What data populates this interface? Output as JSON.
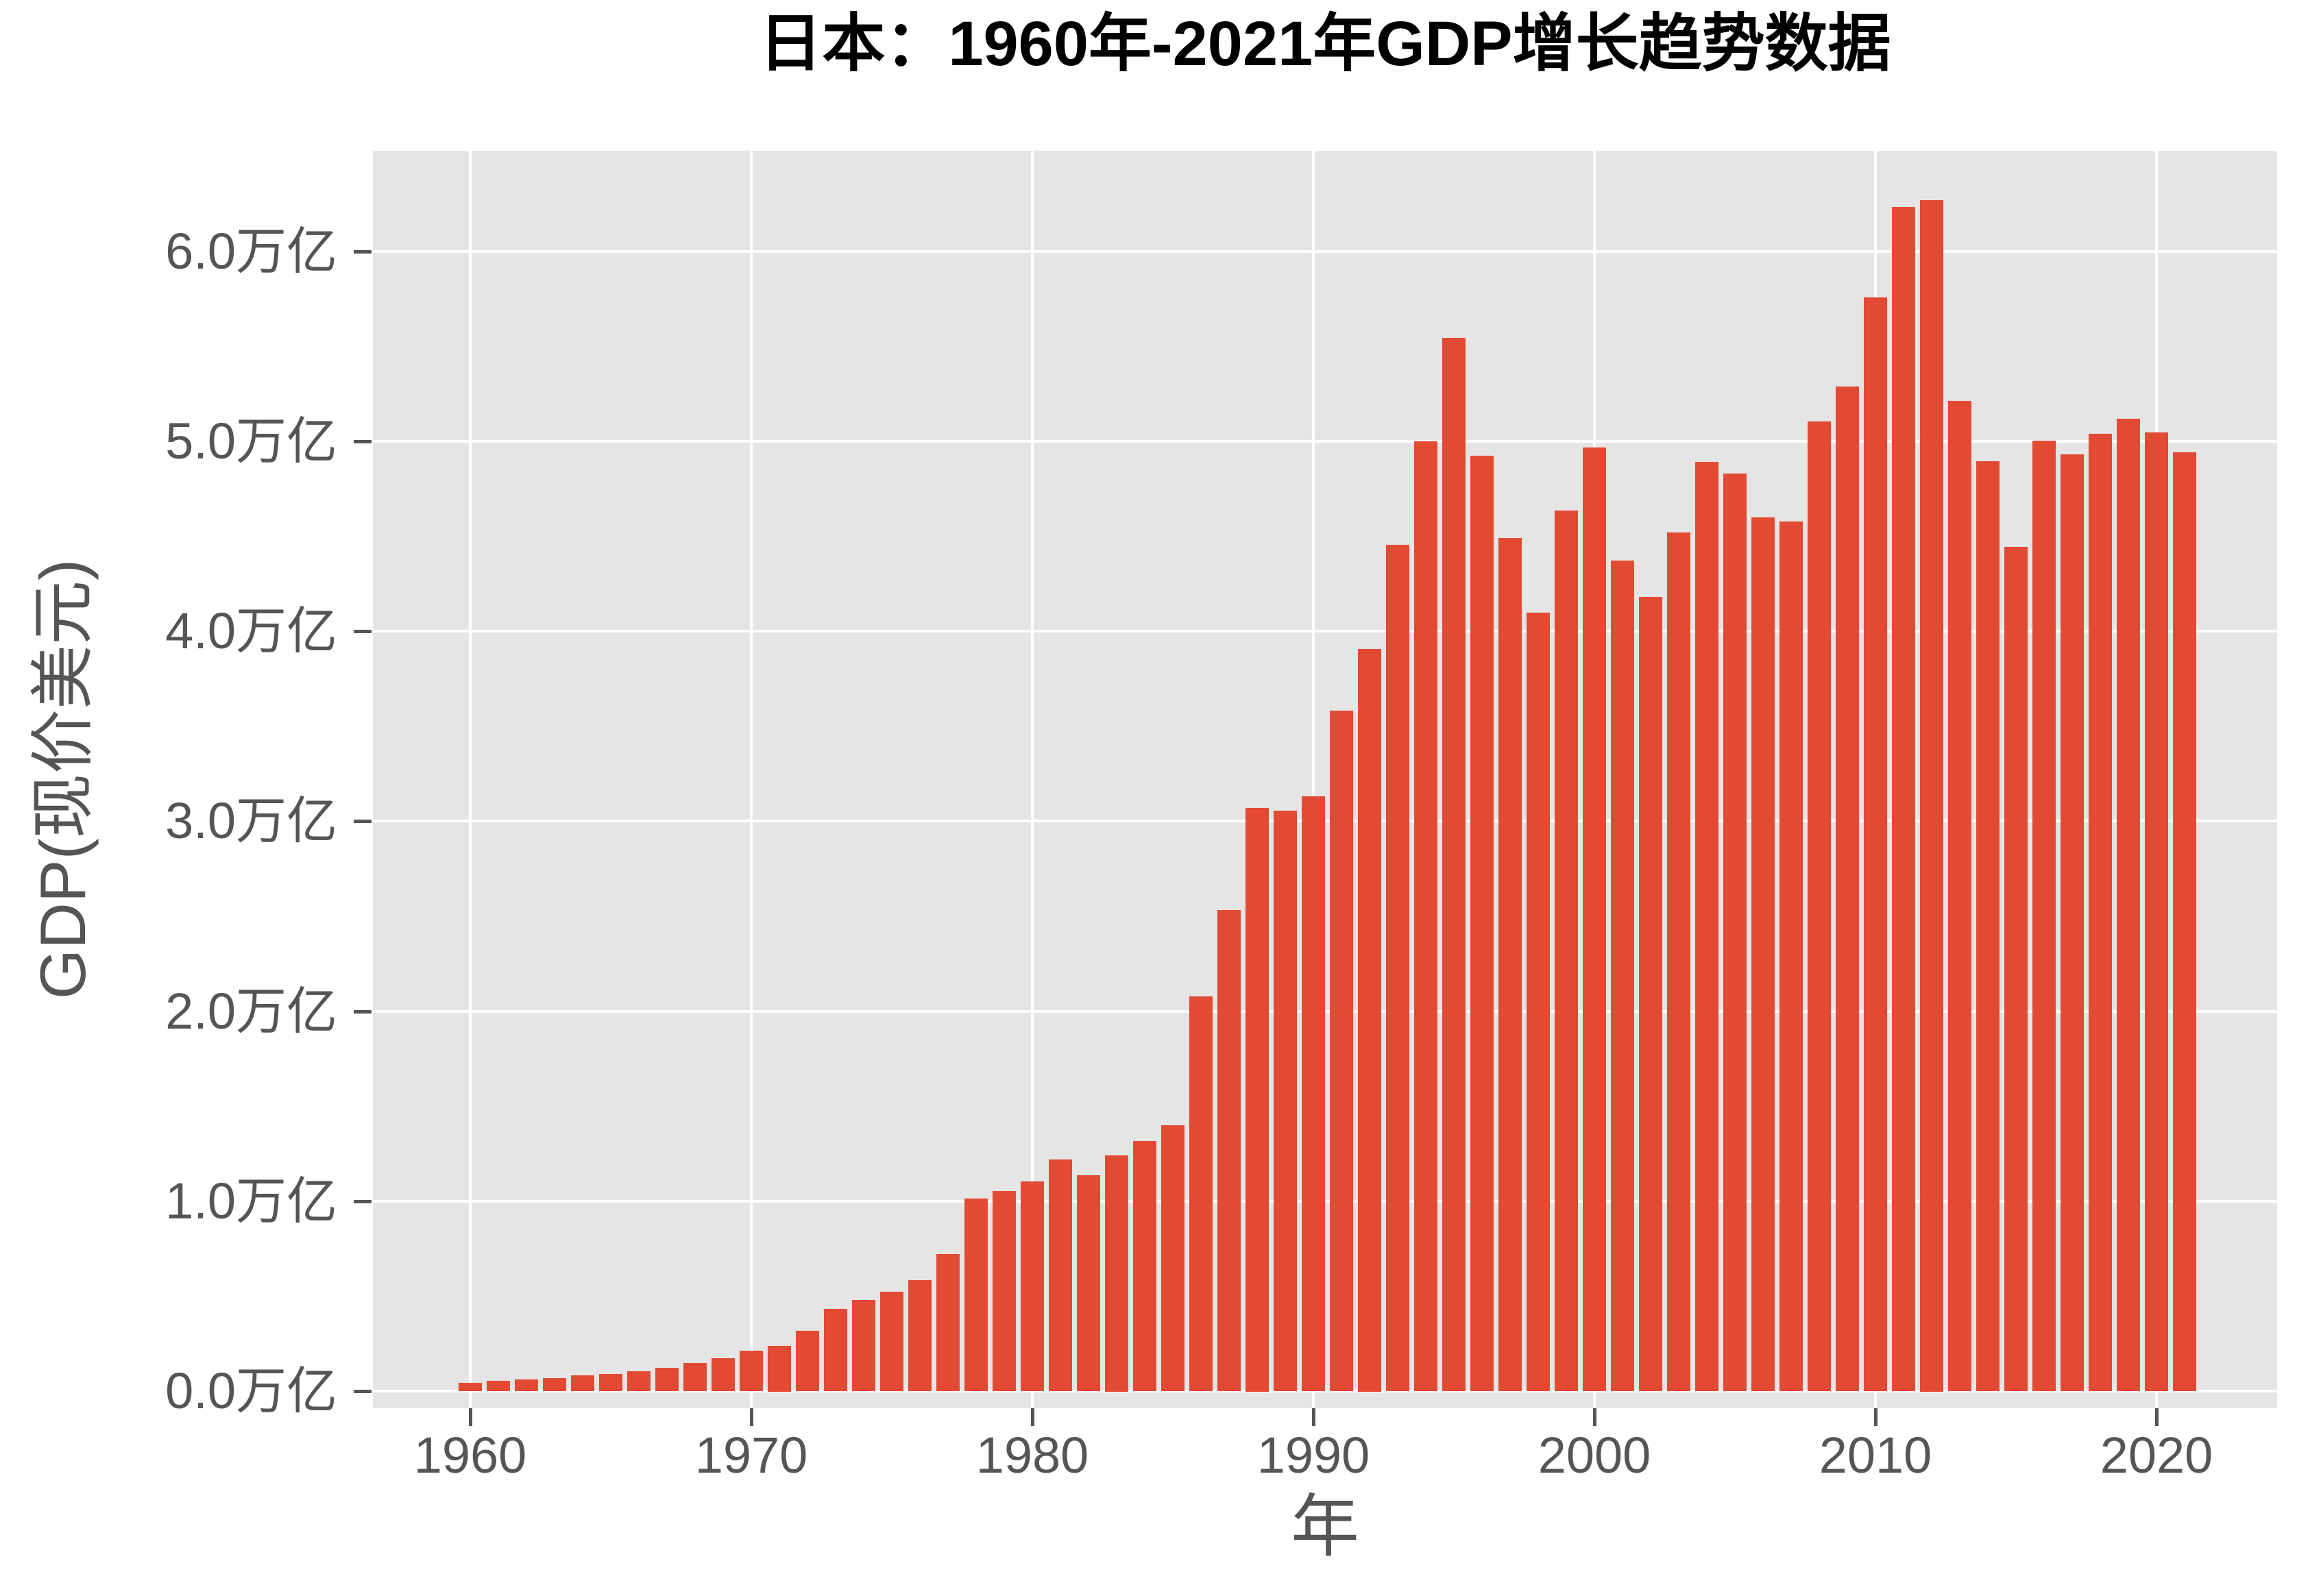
{
  "chart_data": {
    "type": "bar",
    "title": "日本：1960年-2021年GDP增长趋势数据",
    "xlabel": "年",
    "ylabel": "GDP(现价美元)",
    "x": [
      1960,
      1961,
      1962,
      1963,
      1964,
      1965,
      1966,
      1967,
      1968,
      1969,
      1970,
      1971,
      1972,
      1973,
      1974,
      1975,
      1976,
      1977,
      1978,
      1979,
      1980,
      1981,
      1982,
      1983,
      1984,
      1985,
      1986,
      1987,
      1988,
      1989,
      1990,
      1991,
      1992,
      1993,
      1994,
      1995,
      1996,
      1997,
      1998,
      1999,
      2000,
      2001,
      2002,
      2003,
      2004,
      2005,
      2006,
      2007,
      2008,
      2009,
      2010,
      2011,
      2012,
      2013,
      2014,
      2015,
      2016,
      2017,
      2018,
      2019,
      2020,
      2021
    ],
    "values": [
      0.044,
      0.054,
      0.061,
      0.069,
      0.082,
      0.091,
      0.106,
      0.124,
      0.147,
      0.172,
      0.213,
      0.24,
      0.318,
      0.432,
      0.48,
      0.522,
      0.586,
      0.721,
      1.014,
      1.055,
      1.105,
      1.219,
      1.135,
      1.243,
      1.318,
      1.399,
      2.079,
      2.533,
      3.072,
      3.055,
      3.133,
      3.584,
      3.909,
      4.454,
      4.999,
      5.546,
      4.923,
      4.492,
      4.098,
      4.636,
      4.968,
      4.374,
      4.182,
      4.519,
      4.893,
      4.831,
      4.601,
      4.579,
      5.106,
      5.289,
      5.759,
      6.233,
      6.272,
      5.212,
      4.897,
      4.444,
      5.003,
      4.931,
      5.041,
      5.118,
      5.048,
      4.941
    ],
    "value_unit": "万亿 (trillion USD)",
    "xlim": [
      1956.54,
      2024.3
    ],
    "ylim": [
      -0.09,
      6.53
    ],
    "x_ticks": [
      1960,
      1970,
      1980,
      1990,
      2000,
      2010,
      2020
    ],
    "y_ticks": [
      0,
      1,
      2,
      3,
      4,
      5,
      6
    ],
    "y_tick_labels": [
      "0.0万亿",
      "1.0万亿",
      "2.0万亿",
      "3.0万亿",
      "4.0万亿",
      "5.0万亿",
      "6.0万亿"
    ],
    "grid": "major only, white lines on gray panel",
    "legend_position": "none",
    "bar_width_fraction": 0.83,
    "colors": {
      "bar": "#E24A33",
      "panel_bg": "#E5E5E5",
      "gridline": "#FFFFFF",
      "tick_text": "#555555",
      "axis_title_text": "#555555",
      "title_text": "#000000",
      "figure_bg": "#FFFFFF"
    }
  }
}
